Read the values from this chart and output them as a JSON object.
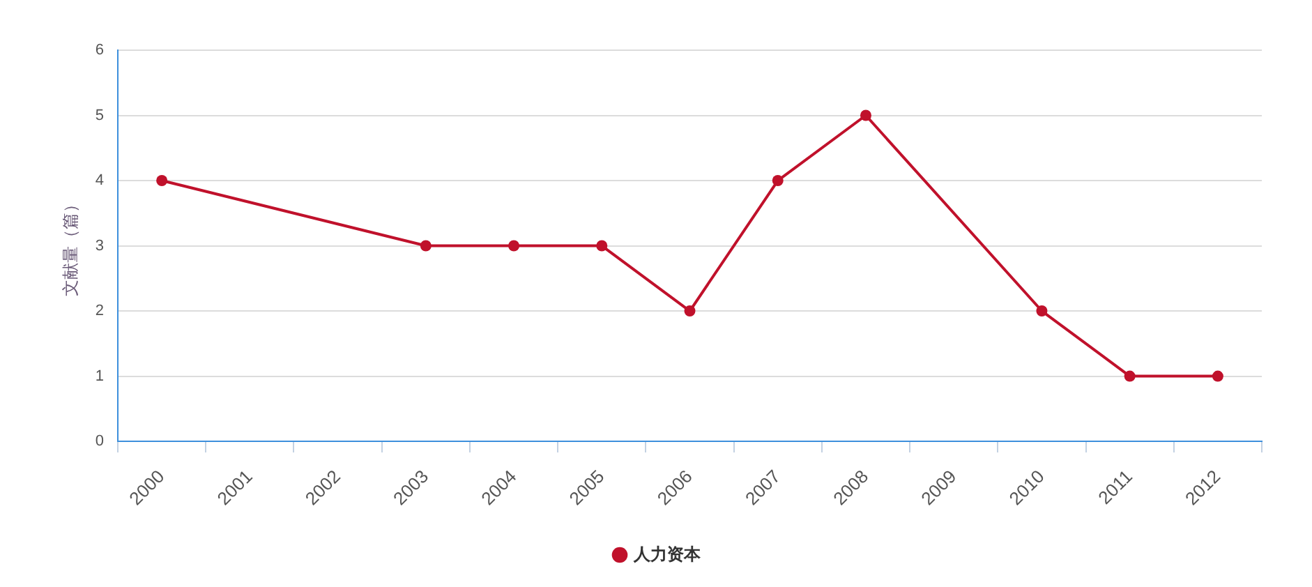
{
  "chart_data": {
    "type": "line",
    "ylabel": "文献量（篇）",
    "series": [
      {
        "name": "人力资本",
        "color": "#c0112b",
        "x": [
          2000,
          2003,
          2004,
          2005,
          2006,
          2007,
          2008,
          2010,
          2011,
          2012
        ],
        "values": [
          4,
          3,
          3,
          3,
          2,
          4,
          5,
          2,
          1,
          1
        ]
      }
    ],
    "xlim": [
      1999.5,
      2012.5
    ],
    "xticks": [
      {
        "value": 1999.5,
        "label": null
      },
      2000,
      {
        "value": 2000.5,
        "label": null
      },
      2001,
      {
        "value": 2001.5,
        "label": null
      },
      2002,
      {
        "value": 2002.5,
        "label": null
      },
      2003,
      {
        "value": 2003.5,
        "label": null
      },
      2004,
      {
        "value": 2004.5,
        "label": null
      },
      2005,
      {
        "value": 2005.5,
        "label": null
      },
      2006,
      {
        "value": 2006.5,
        "label": null
      },
      2007,
      {
        "value": 2007.5,
        "label": null
      },
      2008,
      {
        "value": 2008.5,
        "label": null
      },
      2009,
      {
        "value": 2009.5,
        "label": null
      },
      2010,
      {
        "value": 2010.5,
        "label": null
      },
      2011,
      {
        "value": 2011.5,
        "label": null
      },
      2012,
      {
        "value": 2012.5,
        "label": null
      }
    ],
    "ylim": [
      0,
      6
    ],
    "yticks": [
      0,
      1,
      2,
      3,
      4,
      5,
      6
    ],
    "grid": "y",
    "legend": "bottom",
    "marker": "circle",
    "line_style": "solid"
  }
}
